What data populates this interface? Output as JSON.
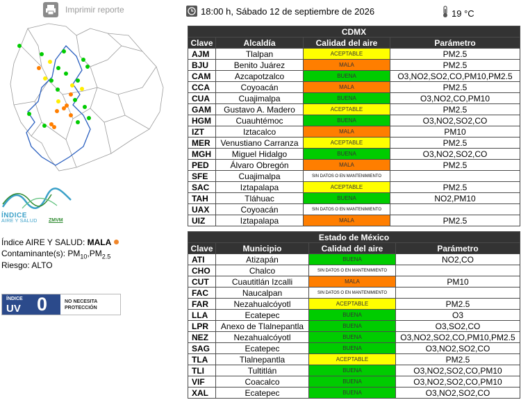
{
  "header": {
    "print_label": "Imprimir reporte",
    "datetime": "18:00 h, Sábado 12 de septiembre de 2026",
    "temperature": "19 °C"
  },
  "map": {
    "stations": [
      {
        "color": "#00cc00"
      },
      {
        "color": "#00cc00"
      },
      {
        "color": "#ffee00"
      },
      {
        "color": "#00cc00"
      },
      {
        "color": "#00cc00"
      },
      {
        "color": "#00cc00"
      },
      {
        "color": "#ff7e00"
      },
      {
        "color": "#00cc00"
      },
      {
        "color": "#00cc00"
      },
      {
        "color": "#00cc00"
      },
      {
        "color": "#00cc00"
      },
      {
        "color": "#ffee00"
      },
      {
        "color": "#ffee00"
      },
      {
        "color": "#00cc00"
      },
      {
        "color": "#ffee00"
      },
      {
        "color": "#ff7e00"
      },
      {
        "color": "#00cc00"
      },
      {
        "color": "#ffee00"
      },
      {
        "color": "#ff7e00"
      },
      {
        "color": "#00cc00"
      },
      {
        "color": "#ff7e00"
      },
      {
        "color": "#00cc00"
      },
      {
        "color": "#ff7e00"
      },
      {
        "color": "#ff7e00"
      },
      {
        "color": "#00cc00"
      },
      {
        "color": "#ff7e00"
      },
      {
        "color": "#00cc00"
      },
      {
        "color": "#ff7e00"
      },
      {
        "color": "#00cc00"
      }
    ]
  },
  "logo": {
    "line1": "ÍNDICE",
    "line2": "AIRE Y SALUD",
    "line3": "ZMVM"
  },
  "summary": {
    "indice_label": "Índice AIRE Y SALUD:",
    "indice_value": "MALA",
    "contaminante_label": "Contaminante(s): PM",
    "pm10_sub": "10",
    "pm_sep": ",PM",
    "pm25_sub": "2.5",
    "riesgo": "Riesgo: ALTO"
  },
  "uv": {
    "small": "ÍNDICE",
    "big": "UV",
    "value": "0",
    "message_1": "NO NECESITA",
    "message_2": "PROTECCIÓN"
  },
  "colors": {
    "buena": "#00cc00",
    "aceptable": "#ffff00",
    "mala": "#ff7e00",
    "header": "#333333"
  },
  "cdmx": {
    "title": "CDMX",
    "headers": [
      "Clave",
      "Alcaldía",
      "Calidad del aire",
      "Parámetro"
    ],
    "rows": [
      {
        "clave": "AJM",
        "lugar": "Tlalpan",
        "calidad": "ACEPTABLE",
        "q": "aceptable",
        "param": "PM2.5"
      },
      {
        "clave": "BJU",
        "lugar": "Benito Juárez",
        "calidad": "MALA",
        "q": "mala",
        "param": "PM2.5"
      },
      {
        "clave": "CAM",
        "lugar": "Azcapotzalco",
        "calidad": "BUENA",
        "q": "buena",
        "param": "O3,NO2,SO2,CO,PM10,PM2.5"
      },
      {
        "clave": "CCA",
        "lugar": "Coyoacán",
        "calidad": "MALA",
        "q": "mala",
        "param": "PM2.5"
      },
      {
        "clave": "CUA",
        "lugar": "Cuajimalpa",
        "calidad": "BUENA",
        "q": "buena",
        "param": "O3,NO2,CO,PM10"
      },
      {
        "clave": "GAM",
        "lugar": "Gustavo A. Madero",
        "calidad": "ACEPTABLE",
        "q": "aceptable",
        "param": "PM2.5"
      },
      {
        "clave": "HGM",
        "lugar": "Cuauhtémoc",
        "calidad": "BUENA",
        "q": "buena",
        "param": "O3,NO2,SO2,CO"
      },
      {
        "clave": "IZT",
        "lugar": "Iztacalco",
        "calidad": "MALA",
        "q": "mala",
        "param": "PM10"
      },
      {
        "clave": "MER",
        "lugar": "Venustiano Carranza",
        "calidad": "ACEPTABLE",
        "q": "aceptable",
        "param": "PM2.5"
      },
      {
        "clave": "MGH",
        "lugar": "Miguel Hidalgo",
        "calidad": "BUENA",
        "q": "buena",
        "param": "O3,NO2,SO2,CO"
      },
      {
        "clave": "PED",
        "lugar": "Álvaro Obregón",
        "calidad": "MALA",
        "q": "mala",
        "param": "PM2.5"
      },
      {
        "clave": "SFE",
        "lugar": "Cuajimalpa",
        "calidad": "SIN DATOS O EN MANTENIMIENTO",
        "q": "nodata",
        "param": ""
      },
      {
        "clave": "SAC",
        "lugar": "Iztapalapa",
        "calidad": "ACEPTABLE",
        "q": "aceptable",
        "param": "PM2.5"
      },
      {
        "clave": "TAH",
        "lugar": "Tláhuac",
        "calidad": "BUENA",
        "q": "buena",
        "param": "NO2,PM10"
      },
      {
        "clave": "UAX",
        "lugar": "Coyoacán",
        "calidad": "SIN DATOS O EN MANTENIMIENTO",
        "q": "nodata",
        "param": ""
      },
      {
        "clave": "UIZ",
        "lugar": "Iztapalapa",
        "calidad": "MALA",
        "q": "mala",
        "param": "PM2.5"
      }
    ]
  },
  "edomex": {
    "title": "Estado de México",
    "headers": [
      "Clave",
      "Municipio",
      "Calidad del aire",
      "Parámetro"
    ],
    "rows": [
      {
        "clave": "ATI",
        "lugar": "Atizapán",
        "calidad": "BUENA",
        "q": "buena",
        "param": "NO2,CO"
      },
      {
        "clave": "CHO",
        "lugar": "Chalco",
        "calidad": "SIN DATOS O EN MANTENIMIENTO",
        "q": "nodata",
        "param": ""
      },
      {
        "clave": "CUT",
        "lugar": "Cuautitlán Izcalli",
        "calidad": "MALA",
        "q": "mala",
        "param": "PM10"
      },
      {
        "clave": "FAC",
        "lugar": "Naucalpan",
        "calidad": "SIN DATOS O EN MANTENIMIENTO",
        "q": "nodata",
        "param": ""
      },
      {
        "clave": "FAR",
        "lugar": "Nezahualcóyotl",
        "calidad": "ACEPTABLE",
        "q": "aceptable",
        "param": "PM2.5"
      },
      {
        "clave": "LLA",
        "lugar": "Ecatepec",
        "calidad": "BUENA",
        "q": "buena",
        "param": "O3"
      },
      {
        "clave": "LPR",
        "lugar": "Anexo de Tlalnepantla",
        "calidad": "BUENA",
        "q": "buena",
        "param": "O3,SO2,CO"
      },
      {
        "clave": "NEZ",
        "lugar": "Nezahualcóyotl",
        "calidad": "BUENA",
        "q": "buena",
        "param": "O3,NO2,SO2,CO,PM10,PM2.5"
      },
      {
        "clave": "SAG",
        "lugar": "Ecatepec",
        "calidad": "BUENA",
        "q": "buena",
        "param": "O3,NO2,SO2,CO"
      },
      {
        "clave": "TLA",
        "lugar": "Tlalnepantla",
        "calidad": "ACEPTABLE",
        "q": "aceptable",
        "param": "PM2.5"
      },
      {
        "clave": "TLI",
        "lugar": "Tultitlán",
        "calidad": "BUENA",
        "q": "buena",
        "param": "O3,NO2,SO2,CO,PM10"
      },
      {
        "clave": "VIF",
        "lugar": "Coacalco",
        "calidad": "BUENA",
        "q": "buena",
        "param": "O3,NO2,SO2,CO,PM10"
      },
      {
        "clave": "XAL",
        "lugar": "Ecatepec",
        "calidad": "BUENA",
        "q": "buena",
        "param": "O3,NO2,SO2,CO"
      }
    ]
  }
}
